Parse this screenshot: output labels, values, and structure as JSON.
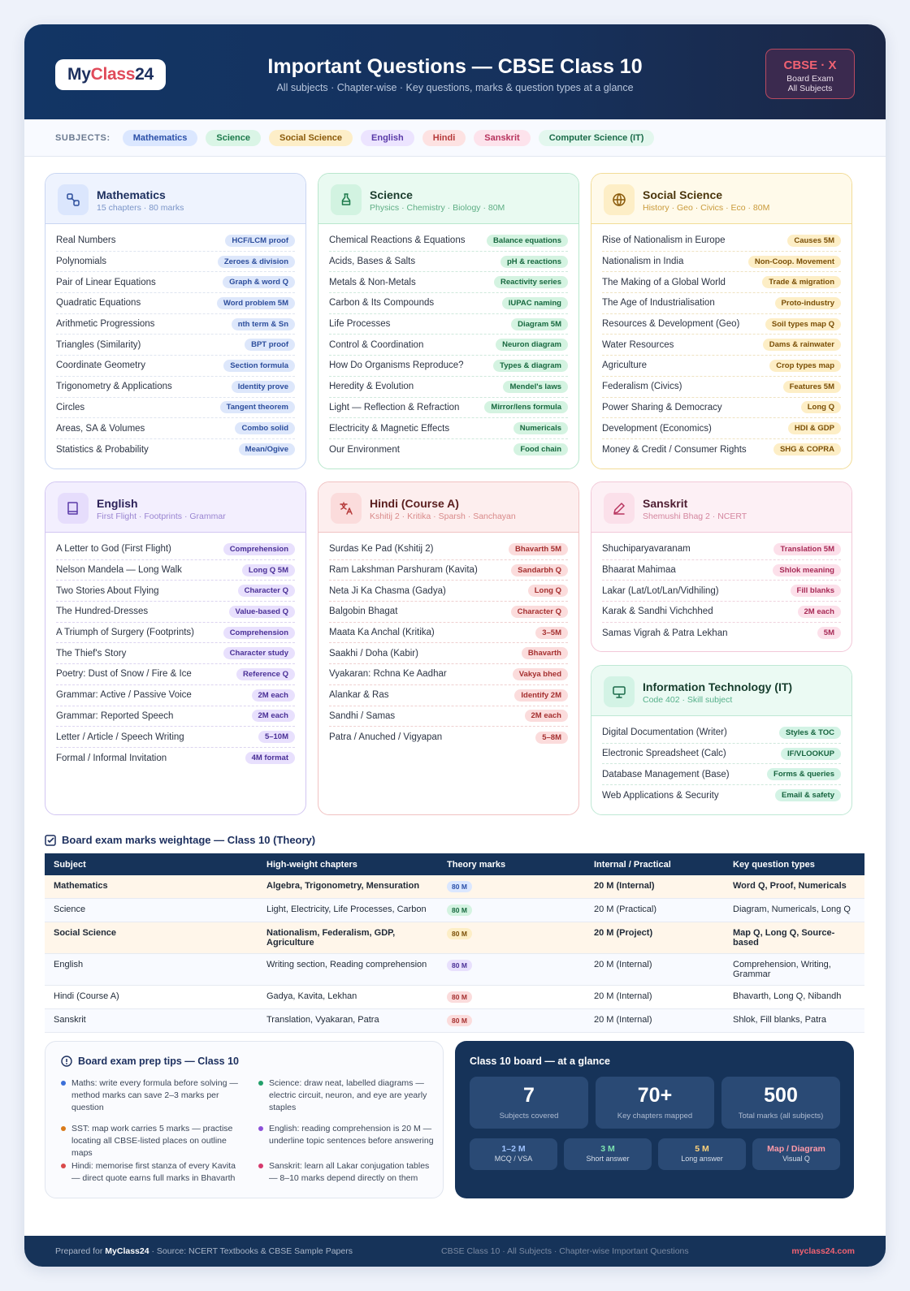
{
  "header": {
    "logo_a": "My",
    "logo_b": "Class",
    "logo_c": "24",
    "title": "Important Questions — CBSE Class 10",
    "subtitle": "All subjects · Chapter-wise · Key questions, marks & question types at a glance",
    "badge_title": "CBSE · X",
    "badge_line1": "Board Exam",
    "badge_line2": "All Subjects"
  },
  "subjects_bar": {
    "label": "SUBJECTS:",
    "chips": [
      "Mathematics",
      "Science",
      "Social Science",
      "English",
      "Hindi",
      "Sanskrit",
      "Computer Science (IT)"
    ]
  },
  "cards": [
    {
      "title": "Mathematics",
      "subtitle": "15 chapters · 80 marks",
      "icon": "shapes-icon",
      "rows": [
        [
          "Real Numbers",
          "HCF/LCM proof"
        ],
        [
          "Polynomials",
          "Zeroes & division"
        ],
        [
          "Pair of Linear Equations",
          "Graph & word Q"
        ],
        [
          "Quadratic Equations",
          "Word problem 5M"
        ],
        [
          "Arithmetic Progressions",
          "nth term & Sn"
        ],
        [
          "Triangles (Similarity)",
          "BPT proof"
        ],
        [
          "Coordinate Geometry",
          "Section formula"
        ],
        [
          "Trigonometry & Applications",
          "Identity prove"
        ],
        [
          "Circles",
          "Tangent theorem"
        ],
        [
          "Areas, SA & Volumes",
          "Combo solid"
        ],
        [
          "Statistics & Probability",
          "Mean/Ogive"
        ]
      ]
    },
    {
      "title": "Science",
      "subtitle": "Physics · Chemistry · Biology · 80M",
      "icon": "flask-icon",
      "rows": [
        [
          "Chemical Reactions & Equations",
          "Balance equations"
        ],
        [
          "Acids, Bases & Salts",
          "pH & reactions"
        ],
        [
          "Metals & Non-Metals",
          "Reactivity series"
        ],
        [
          "Carbon & Its Compounds",
          "IUPAC naming"
        ],
        [
          "Life Processes",
          "Diagram 5M"
        ],
        [
          "Control & Coordination",
          "Neuron diagram"
        ],
        [
          "How Do Organisms Reproduce?",
          "Types & diagram"
        ],
        [
          "Heredity & Evolution",
          "Mendel's laws"
        ],
        [
          "Light — Reflection & Refraction",
          "Mirror/lens formula"
        ],
        [
          "Electricity & Magnetic Effects",
          "Numericals"
        ],
        [
          "Our Environment",
          "Food chain"
        ]
      ]
    },
    {
      "title": "Social Science",
      "subtitle": "History · Geo · Civics · Eco · 80M",
      "icon": "globe-icon",
      "rows": [
        [
          "Rise of Nationalism in Europe",
          "Causes 5M"
        ],
        [
          "Nationalism in India",
          "Non-Coop. Movement"
        ],
        [
          "The Making of a Global World",
          "Trade & migration"
        ],
        [
          "The Age of Industrialisation",
          "Proto-industry"
        ],
        [
          "Resources & Development (Geo)",
          "Soil types map Q"
        ],
        [
          "Water Resources",
          "Dams & rainwater"
        ],
        [
          "Agriculture",
          "Crop types map"
        ],
        [
          "Federalism (Civics)",
          "Features 5M"
        ],
        [
          "Power Sharing & Democracy",
          "Long Q"
        ],
        [
          "Development (Economics)",
          "HDI & GDP"
        ],
        [
          "Money & Credit / Consumer Rights",
          "SHG & COPRA"
        ]
      ]
    },
    {
      "title": "English",
      "subtitle": "First Flight · Footprints · Grammar",
      "icon": "book-icon",
      "rows": [
        [
          "A Letter to God (First Flight)",
          "Comprehension"
        ],
        [
          "Nelson Mandela — Long Walk",
          "Long Q 5M"
        ],
        [
          "Two Stories About Flying",
          "Character Q"
        ],
        [
          "The Hundred-Dresses",
          "Value-based Q"
        ],
        [
          "A Triumph of Surgery (Footprints)",
          "Comprehension"
        ],
        [
          "The Thief's Story",
          "Character study"
        ],
        [
          "Poetry: Dust of Snow / Fire & Ice",
          "Reference Q"
        ],
        [
          "Grammar: Active / Passive Voice",
          "2M each"
        ],
        [
          "Grammar: Reported Speech",
          "2M each"
        ],
        [
          "Letter / Article / Speech Writing",
          "5–10M"
        ],
        [
          "Formal / Informal Invitation",
          "4M format"
        ]
      ]
    },
    {
      "title": "Hindi (Course A)",
      "subtitle": "Kshitij 2 · Kritika · Sparsh · Sanchayan",
      "icon": "translate-icon",
      "rows": [
        [
          "Surdas Ke Pad (Kshitij 2)",
          "Bhavarth 5M"
        ],
        [
          "Ram Lakshman Parshuram (Kavita)",
          "Sandarbh Q"
        ],
        [
          "Neta Ji Ka Chasma (Gadya)",
          "Long Q"
        ],
        [
          "Balgobin Bhagat",
          "Character Q"
        ],
        [
          "Maata Ka Anchal (Kritika)",
          "3–5M"
        ],
        [
          "Saakhi / Doha (Kabir)",
          "Bhavarth"
        ],
        [
          "Vyakaran: Rchna Ke Aadhar",
          "Vakya bhed"
        ],
        [
          "Alankar & Ras",
          "Identify 2M"
        ],
        [
          "Sandhi / Samas",
          "2M each"
        ],
        [
          "Patra / Anuched / Vigyapan",
          "5–8M"
        ]
      ]
    },
    {
      "title": "Sanskrit",
      "subtitle": "Shemushi Bhag 2 · NCERT",
      "icon": "pen-icon",
      "rows": [
        [
          "Shuchiparyavaranam",
          "Translation 5M"
        ],
        [
          "Bhaarat Mahimaa",
          "Shlok meaning"
        ],
        [
          "Lakar (Lat/Lot/Lan/Vidhiling)",
          "Fill blanks"
        ],
        [
          "Karak & Sandhi Vichchhed",
          "2M each"
        ],
        [
          "Samas Vigrah & Patra Lekhan",
          "5M"
        ]
      ]
    },
    {
      "title": "Information Technology (IT)",
      "subtitle": "Code 402 · Skill subject",
      "icon": "monitor-icon",
      "rows": [
        [
          "Digital Documentation (Writer)",
          "Styles & TOC"
        ],
        [
          "Electronic Spreadsheet (Calc)",
          "IF/VLOOKUP"
        ],
        [
          "Database Management (Base)",
          "Forms & queries"
        ],
        [
          "Web Applications & Security",
          "Email & safety"
        ]
      ]
    }
  ],
  "weightage": {
    "title": "Board exam marks weightage — Class 10 (Theory)",
    "headers": [
      "Subject",
      "High-weight chapters",
      "Theory marks",
      "Internal / Practical",
      "Key question types"
    ],
    "rows": [
      [
        "Mathematics",
        "Algebra, Trigonometry, Mensuration",
        "80 M",
        "20 M (Internal)",
        "Word Q, Proof, Numericals"
      ],
      [
        "Science",
        "Light, Electricity, Life Processes, Carbon",
        "80 M",
        "20 M (Practical)",
        "Diagram, Numericals, Long Q"
      ],
      [
        "Social Science",
        "Nationalism, Federalism, GDP, Agriculture",
        "80 M",
        "20 M (Project)",
        "Map Q, Long Q, Source-based"
      ],
      [
        "English",
        "Writing section, Reading comprehension",
        "80 M",
        "20 M (Internal)",
        "Comprehension, Writing, Grammar"
      ],
      [
        "Hindi (Course A)",
        "Gadya, Kavita, Lekhan",
        "80 M",
        "20 M (Internal)",
        "Bhavarth, Long Q, Nibandh"
      ],
      [
        "Sanskrit",
        "Translation, Vyakaran, Patra",
        "80 M",
        "20 M (Internal)",
        "Shlok, Fill blanks, Patra"
      ]
    ]
  },
  "tips": {
    "title": "Board exam prep tips — Class 10",
    "items": [
      "Maths: write every formula before solving — method marks can save 2–3 marks per question",
      "Science: draw neat, labelled diagrams — electric circuit, neuron, and eye are yearly staples",
      "SST: map work carries 5 marks — practise locating all CBSE-listed places on outline maps",
      "English: reading comprehension is 20 M — underline topic sentences before answering",
      "Hindi: memorise first stanza of every Kavita — direct quote earns full marks in Bhavarth",
      "Sanskrit: learn all Lakar conjugation tables — 8–10 marks depend directly on them"
    ],
    "colors": [
      "#3b6fd8",
      "#22a06b",
      "#d97a1a",
      "#8b4fd8",
      "#d94a4a",
      "#d63a6e"
    ]
  },
  "glance": {
    "title": "Class 10 board — at a glance",
    "stats": [
      {
        "value": "7",
        "label": "Subjects covered"
      },
      {
        "value": "70+",
        "label": "Key chapters mapped"
      },
      {
        "value": "500",
        "label": "Total marks (all subjects)"
      }
    ],
    "types": [
      {
        "value": "1–2 M",
        "label": "MCQ / VSA",
        "color": "#9fc3ff"
      },
      {
        "value": "3 M",
        "label": "Short answer",
        "color": "#7de3b0"
      },
      {
        "value": "5 M",
        "label": "Long answer",
        "color": "#ffd27a"
      },
      {
        "value": "Map / Diagram",
        "label": "Visual Q",
        "color": "#ff9aa8"
      }
    ]
  },
  "footer": {
    "prepared": "Prepared for",
    "brand": "MyClass24",
    "source": "· Source: NCERT Textbooks & CBSE Sample Papers",
    "middle": "CBSE Class 10 · All Subjects · Chapter-wise Important Questions",
    "url": "myclass24.com"
  }
}
